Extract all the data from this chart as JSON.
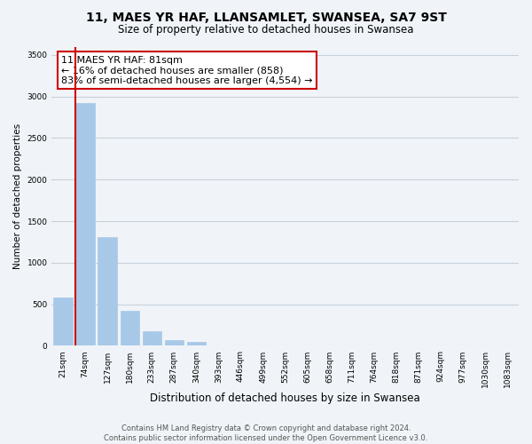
{
  "title": "11, MAES YR HAF, LLANSAMLET, SWANSEA, SA7 9ST",
  "subtitle": "Size of property relative to detached houses in Swansea",
  "xlabel": "Distribution of detached houses by size in Swansea",
  "ylabel": "Number of detached properties",
  "bar_labels": [
    "21sqm",
    "74sqm",
    "127sqm",
    "180sqm",
    "233sqm",
    "287sqm",
    "340sqm",
    "393sqm",
    "446sqm",
    "499sqm",
    "552sqm",
    "605sqm",
    "658sqm",
    "711sqm",
    "764sqm",
    "818sqm",
    "871sqm",
    "924sqm",
    "977sqm",
    "1030sqm",
    "1083sqm"
  ],
  "bar_values": [
    580,
    2920,
    1310,
    420,
    175,
    70,
    50,
    0,
    0,
    0,
    0,
    0,
    0,
    0,
    0,
    0,
    0,
    0,
    0,
    0,
    0
  ],
  "bar_color": "#a8c8e8",
  "bar_edge_color": "#a8c8e8",
  "highlight_line_color": "#cc0000",
  "annotation_line1": "11 MAES YR HAF: 81sqm",
  "annotation_line2": "← 16% of detached houses are smaller (858)",
  "annotation_line3": "83% of semi-detached houses are larger (4,554) →",
  "annotation_box_facecolor": "#ffffff",
  "annotation_box_edgecolor": "#cc0000",
  "ylim": [
    0,
    3600
  ],
  "yticks": [
    0,
    500,
    1000,
    1500,
    2000,
    2500,
    3000,
    3500
  ],
  "grid_color": "#c8d0dc",
  "bg_color": "#f0f4f8",
  "footer_line1": "Contains HM Land Registry data © Crown copyright and database right 2024.",
  "footer_line2": "Contains public sector information licensed under the Open Government Licence v3.0.",
  "title_fontsize": 10,
  "subtitle_fontsize": 8.5,
  "xlabel_fontsize": 8.5,
  "ylabel_fontsize": 7.5,
  "tick_fontsize": 6.5,
  "annotation_fontsize": 8,
  "footer_fontsize": 6
}
